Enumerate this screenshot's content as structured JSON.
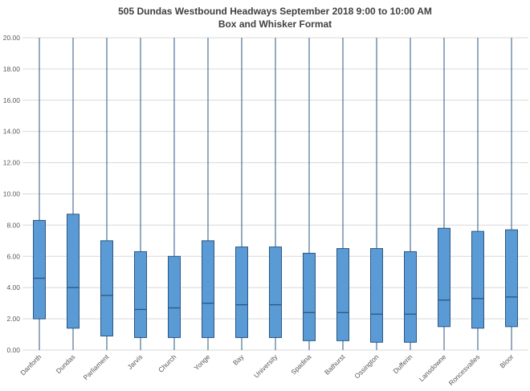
{
  "chart_data": {
    "type": "boxplot",
    "title": "505 Dundas Westbound Headways September 2018 9:00 to 10:00 AM",
    "subtitle": "Box and Whisker Format",
    "ylim": [
      0,
      20
    ],
    "ytick_step": 2,
    "ytick_labels": [
      "0.00",
      "2.00",
      "4.00",
      "6.00",
      "8.00",
      "10.00",
      "12.00",
      "14.00",
      "16.00",
      "18.00",
      "20.00"
    ],
    "grid": true,
    "legend": "none",
    "categories": [
      "Danforth",
      "Dundas",
      "Parliament",
      "Jarvis",
      "Church",
      "Yonge",
      "Bay",
      "University",
      "Spadina",
      "Bathurst",
      "Ossington",
      "Dufferin",
      "Lansdowne",
      "Roncesvalles",
      "Bloor"
    ],
    "boxes": [
      {
        "category": "Danforth",
        "whisker_low": 0,
        "q1": 2.0,
        "median": 4.6,
        "q3": 8.3,
        "whisker_high": 20
      },
      {
        "category": "Dundas",
        "whisker_low": 0,
        "q1": 1.4,
        "median": 4.0,
        "q3": 8.7,
        "whisker_high": 20
      },
      {
        "category": "Parliament",
        "whisker_low": 0,
        "q1": 0.9,
        "median": 3.5,
        "q3": 7.0,
        "whisker_high": 20
      },
      {
        "category": "Jarvis",
        "whisker_low": 0,
        "q1": 0.8,
        "median": 2.6,
        "q3": 6.3,
        "whisker_high": 20
      },
      {
        "category": "Church",
        "whisker_low": 0,
        "q1": 0.8,
        "median": 2.7,
        "q3": 6.0,
        "whisker_high": 20
      },
      {
        "category": "Yonge",
        "whisker_low": 0,
        "q1": 0.8,
        "median": 3.0,
        "q3": 7.0,
        "whisker_high": 20
      },
      {
        "category": "Bay",
        "whisker_low": 0,
        "q1": 0.8,
        "median": 2.9,
        "q3": 6.6,
        "whisker_high": 20
      },
      {
        "category": "University",
        "whisker_low": 0,
        "q1": 0.8,
        "median": 2.9,
        "q3": 6.6,
        "whisker_high": 20
      },
      {
        "category": "Spadina",
        "whisker_low": 0,
        "q1": 0.6,
        "median": 2.4,
        "q3": 6.2,
        "whisker_high": 20
      },
      {
        "category": "Bathurst",
        "whisker_low": 0,
        "q1": 0.6,
        "median": 2.4,
        "q3": 6.5,
        "whisker_high": 20
      },
      {
        "category": "Ossington",
        "whisker_low": 0,
        "q1": 0.5,
        "median": 2.3,
        "q3": 6.5,
        "whisker_high": 20
      },
      {
        "category": "Dufferin",
        "whisker_low": 0,
        "q1": 0.5,
        "median": 2.3,
        "q3": 6.3,
        "whisker_high": 20
      },
      {
        "category": "Lansdowne",
        "whisker_low": 0,
        "q1": 1.5,
        "median": 3.2,
        "q3": 7.8,
        "whisker_high": 20
      },
      {
        "category": "Roncesvalles",
        "whisker_low": 0,
        "q1": 1.4,
        "median": 3.3,
        "q3": 7.6,
        "whisker_high": 20
      },
      {
        "category": "Bloor",
        "whisker_low": 0,
        "q1": 1.5,
        "median": 3.4,
        "q3": 7.7,
        "whisker_high": 20
      }
    ],
    "colors": {
      "box_fill": "#5B9BD5",
      "box_stroke": "#2A5784",
      "gridline": "#D9D9D9",
      "axis_text": "#595959",
      "title_text": "#404040",
      "background": "#FFFFFF"
    }
  }
}
